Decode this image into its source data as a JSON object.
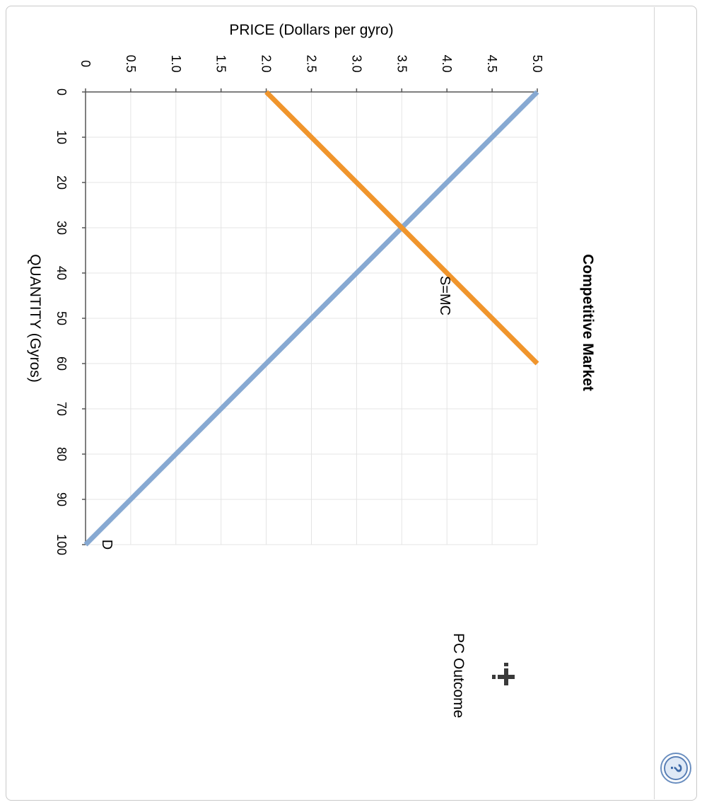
{
  "chart_data": {
    "type": "line",
    "title": "Competitive Market",
    "xlabel": "QUANTITY (Gyros)",
    "ylabel": "PRICE (Dollars per gyro)",
    "xlim": [
      0,
      100
    ],
    "ylim": [
      0,
      5.0
    ],
    "x_ticks": [
      "0",
      "10",
      "20",
      "30",
      "40",
      "50",
      "60",
      "70",
      "80",
      "90",
      "100"
    ],
    "y_ticks": [
      "0",
      "0.5",
      "1.0",
      "1.5",
      "2.0",
      "2.5",
      "3.0",
      "3.5",
      "4.0",
      "4.5",
      "5.0"
    ],
    "grid": true,
    "orientation": "rotated 90° clockwise",
    "series": [
      {
        "name": "D",
        "color": "#87a9d2",
        "points": [
          [
            0,
            5.0
          ],
          [
            100,
            0
          ]
        ]
      },
      {
        "name": "S=MC",
        "color": "#f0952c",
        "points": [
          [
            0,
            2.0
          ],
          [
            60,
            5.0
          ]
        ]
      }
    ]
  },
  "tools": {
    "pc_outcome_label": "PC Outcome",
    "pc_outcome_icon": "plus-marker-icon"
  },
  "help": {
    "icon": "question-mark-icon"
  }
}
